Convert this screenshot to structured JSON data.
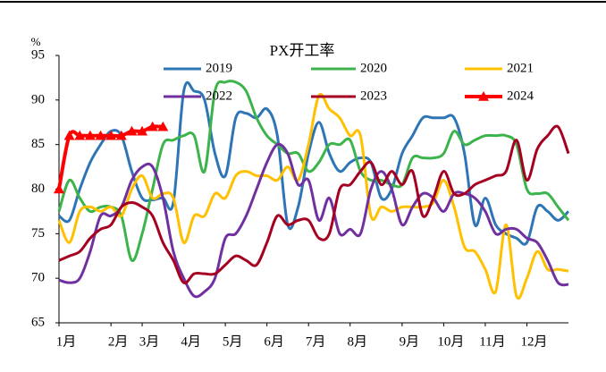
{
  "chart_data": {
    "type": "line",
    "title": "PX开工率",
    "y_unit": "%",
    "x": [
      1,
      2,
      3,
      4,
      5,
      6,
      7,
      8,
      9,
      10,
      11,
      12,
      13,
      14,
      15,
      16,
      17,
      18,
      19,
      20,
      21,
      22,
      23,
      24,
      25,
      26,
      27,
      28,
      29,
      30,
      31,
      32,
      33,
      34,
      35,
      36,
      37,
      38,
      39,
      40,
      41,
      42,
      43,
      44,
      45,
      46,
      47,
      48,
      49,
      50
    ],
    "xlim": [
      1,
      50
    ],
    "xticks": [
      {
        "value": 1,
        "label": "1月"
      },
      {
        "value": 6,
        "label": "2月"
      },
      {
        "value": 9,
        "label": "3月"
      },
      {
        "value": 13,
        "label": "4月"
      },
      {
        "value": 17,
        "label": "5月"
      },
      {
        "value": 21,
        "label": "6月"
      },
      {
        "value": 25,
        "label": "7月"
      },
      {
        "value": 29,
        "label": "8月"
      },
      {
        "value": 34,
        "label": "9月"
      },
      {
        "value": 38,
        "label": "10月"
      },
      {
        "value": 42,
        "label": "11月"
      },
      {
        "value": 46,
        "label": "12月"
      }
    ],
    "ylim": [
      65,
      95
    ],
    "yticks": [
      65,
      70,
      75,
      80,
      85,
      90,
      95
    ],
    "legend": "top",
    "grid": false,
    "series": [
      {
        "name": "2019",
        "color": "#2e75b6",
        "values": [
          77,
          76.5,
          80,
          83,
          85,
          86.5,
          86,
          82,
          79,
          78.8,
          79,
          78.5,
          91,
          91,
          90,
          84,
          81.5,
          88,
          88.5,
          88,
          89,
          86,
          76,
          78,
          84,
          87.5,
          84,
          82,
          83,
          83.5,
          83,
          79,
          80,
          84,
          86,
          88,
          88,
          88,
          88,
          84,
          76,
          79,
          76,
          75,
          74.5,
          74,
          78,
          77.5,
          76.5,
          77.5
        ]
      },
      {
        "name": "2020",
        "color": "#3cb44b",
        "values": [
          77.5,
          81,
          79,
          77.5,
          78,
          78,
          77,
          72,
          75,
          80,
          85,
          85.5,
          86,
          86,
          82,
          91,
          92,
          92,
          91,
          88,
          86,
          85,
          84,
          84,
          82,
          83,
          85,
          85,
          85.5,
          82,
          81,
          81,
          80.5,
          80.5,
          83.5,
          83.5,
          83.5,
          84,
          86.5,
          85,
          85.5,
          86,
          86,
          86,
          85,
          80,
          79.5,
          79.5,
          78,
          76.5
        ]
      },
      {
        "name": "2021",
        "color": "#ffc000",
        "values": [
          76.5,
          74,
          77.5,
          78,
          77.5,
          78,
          77,
          80,
          81.5,
          79,
          79.5,
          79,
          74,
          77,
          77,
          79.5,
          79,
          81.5,
          82,
          81.5,
          81.5,
          81,
          82.5,
          81,
          85,
          90.5,
          89,
          88,
          86,
          86,
          77,
          78,
          77.5,
          78,
          78,
          78,
          78.5,
          81,
          78,
          73.5,
          73,
          71,
          68.5,
          76,
          68,
          70,
          73,
          71,
          71,
          70.8
        ]
      },
      {
        "name": "2022",
        "color": "#7030a0",
        "values": [
          69.8,
          69.5,
          70,
          73,
          77,
          77,
          78,
          81,
          82.5,
          82.5,
          79,
          73,
          70,
          68,
          68.5,
          70,
          74.5,
          75,
          77,
          80,
          83,
          85,
          84,
          80.5,
          81,
          76.5,
          79,
          75,
          75.5,
          75,
          80,
          82,
          80,
          76,
          78,
          79.5,
          79,
          77.5,
          79.5,
          79.5,
          79,
          77.5,
          75,
          75.5,
          75.5,
          74.5,
          74,
          72,
          69.5,
          69.3
        ]
      },
      {
        "name": "2023",
        "color": "#a50021",
        "values": [
          72,
          72.5,
          73,
          74.5,
          75.5,
          76,
          78,
          78.5,
          78,
          77,
          74,
          72,
          69.5,
          70.5,
          70.5,
          70.5,
          71.5,
          72.5,
          72,
          71.5,
          74,
          77,
          76,
          76.5,
          76.5,
          74.5,
          75,
          80,
          80.5,
          82,
          83,
          80.5,
          82,
          80.5,
          82,
          77,
          79,
          82,
          79.5,
          79.5,
          80.5,
          81,
          81.5,
          82,
          85.5,
          81,
          84.5,
          86,
          87,
          84
        ]
      },
      {
        "name": "2024",
        "color": "#ff0000",
        "marker": "triangle",
        "values": [
          80,
          86,
          86,
          86,
          86,
          86,
          86,
          86.5,
          86.5,
          87,
          87,
          null,
          null,
          null,
          null,
          null,
          null,
          null,
          null,
          null,
          null,
          null,
          null,
          null,
          null,
          null,
          null,
          null,
          null,
          null,
          null,
          null,
          null,
          null,
          null,
          null,
          null,
          null,
          null,
          null,
          null,
          null,
          null,
          null,
          null,
          null,
          null,
          null,
          null,
          null
        ]
      }
    ]
  }
}
